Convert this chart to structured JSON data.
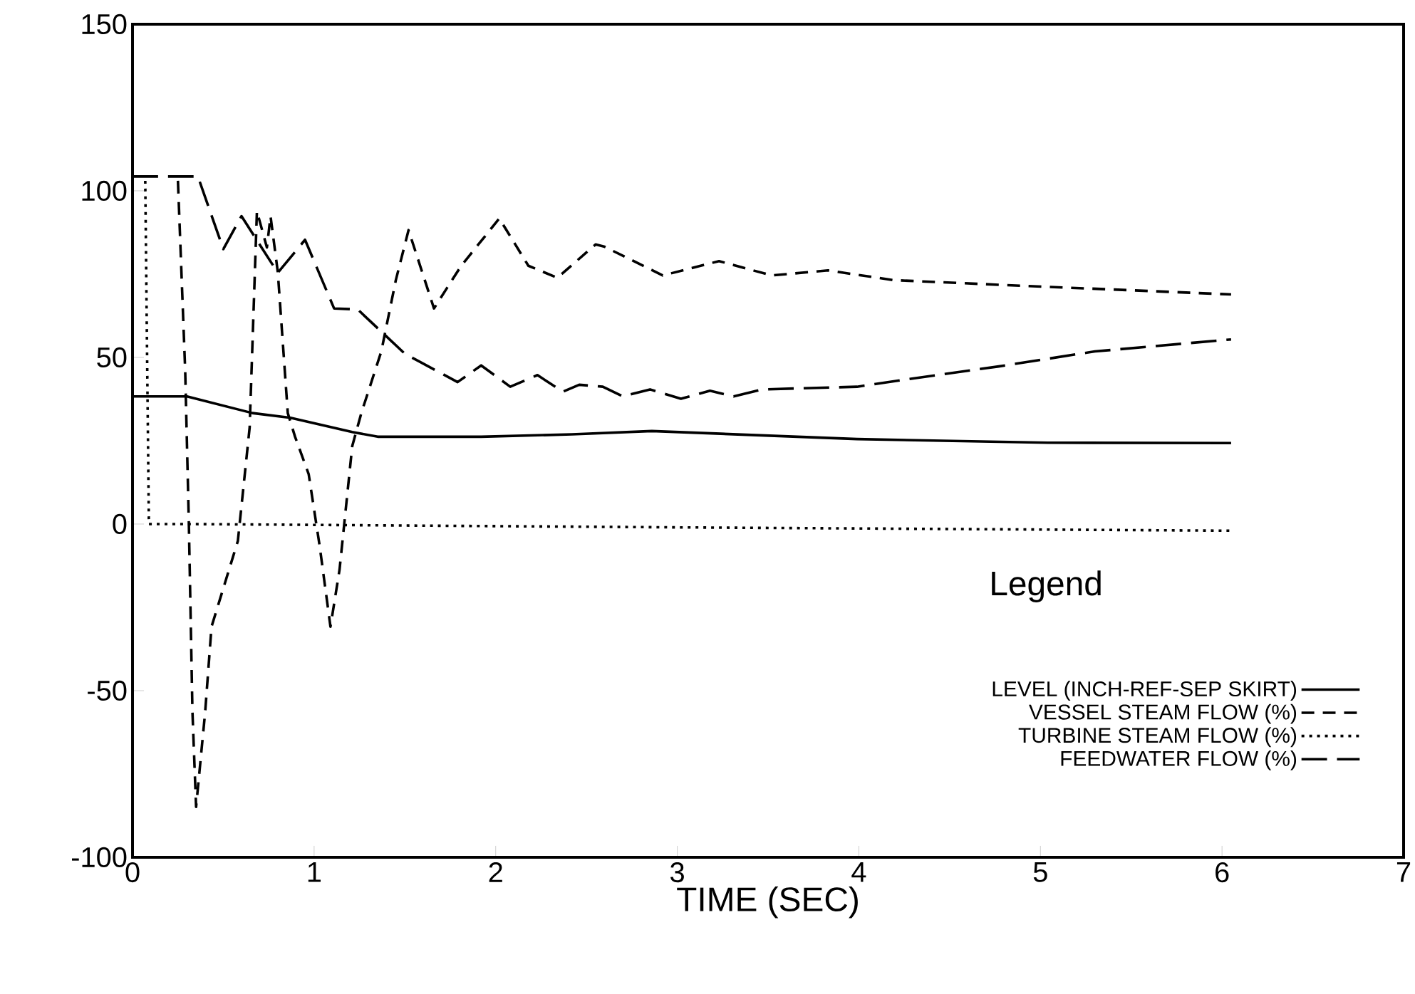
{
  "chart_data": {
    "type": "line",
    "xlabel": "TIME (SEC)",
    "legend_title": "Legend",
    "legend": "bottom right",
    "grid": false,
    "marker": "none",
    "xlim": [
      0,
      7
    ],
    "ylim": [
      -100,
      150
    ],
    "xticks": [
      0,
      1,
      2,
      3,
      4,
      5,
      6,
      7
    ],
    "yticks": [
      -100,
      -50,
      0,
      50,
      100,
      150
    ],
    "series": [
      {
        "name": "LEVEL (INCH-REF-SEP SKIRT)",
        "color": "#000000",
        "line_style": "solid",
        "x": [
          0,
          0.3,
          0.66,
          0.87,
          1.21,
          1.35,
          1.92,
          2.42,
          2.86,
          3.99,
          5.04,
          6.05
        ],
        "values": [
          38.3,
          38.3,
          33.3,
          31.9,
          27.6,
          26.2,
          26.2,
          26.9,
          27.9,
          25.5,
          24.4,
          24.3
        ]
      },
      {
        "name": "VESSEL STEAM FLOW (%)",
        "color": "#000000",
        "line_style": "dashed",
        "x": [
          0.25,
          0.29,
          0.31,
          0.33,
          0.35,
          0.4,
          0.435,
          0.58,
          0.645,
          0.685,
          0.74,
          0.76,
          0.8,
          0.855,
          0.895,
          0.97,
          1.03,
          1.09,
          1.14,
          1.21,
          1.26,
          1.37,
          1.45,
          1.52,
          1.66,
          1.81,
          2.02,
          2.18,
          2.34,
          2.55,
          2.6,
          2.92,
          3.23,
          3.52,
          3.83,
          4.19,
          4.77,
          6.05
        ],
        "values": [
          103,
          46,
          0.6,
          -56.4,
          -84.9,
          -56.4,
          -30.8,
          -5.1,
          29,
          93.9,
          83,
          92.4,
          75.6,
          33.3,
          26.2,
          15,
          -6.4,
          -30.8,
          -13.7,
          23.4,
          33.3,
          51.8,
          73.2,
          88.2,
          64.7,
          77.5,
          91.7,
          77.5,
          73.9,
          83.9,
          83.2,
          74.6,
          78.9,
          74.6,
          76.1,
          73.2,
          71.8,
          68.9
        ]
      },
      {
        "name": "TURBINE STEAM FLOW (%)",
        "color": "#000000",
        "line_style": "dotted",
        "x": [
          0.07,
          0.09,
          0.3,
          3,
          6.05
        ],
        "values": [
          103,
          0,
          0,
          -1,
          -2
        ]
      },
      {
        "name": "FEEDWATER FLOW (%)",
        "color": "#000000",
        "line_style": "dashed",
        "x": [
          0,
          0.36,
          0.5,
          0.6,
          0.8,
          0.95,
          1.11,
          1.24,
          1.5,
          1.79,
          1.92,
          2.08,
          2.23,
          2.37,
          2.46,
          2.59,
          2.7,
          2.85,
          3.02,
          3.18,
          3.31,
          3.47,
          3.99,
          4.25,
          4.77,
          5.3,
          6.05
        ],
        "values": [
          104.3,
          104.3,
          82.5,
          92.4,
          75.4,
          85.3,
          64.7,
          64.4,
          51.1,
          42.6,
          47.6,
          41.2,
          44.7,
          39.7,
          41.8,
          41.2,
          38.3,
          40.4,
          37.6,
          40,
          38.3,
          40.4,
          41.2,
          43.3,
          47.3,
          51.8,
          55.4
        ]
      }
    ]
  }
}
